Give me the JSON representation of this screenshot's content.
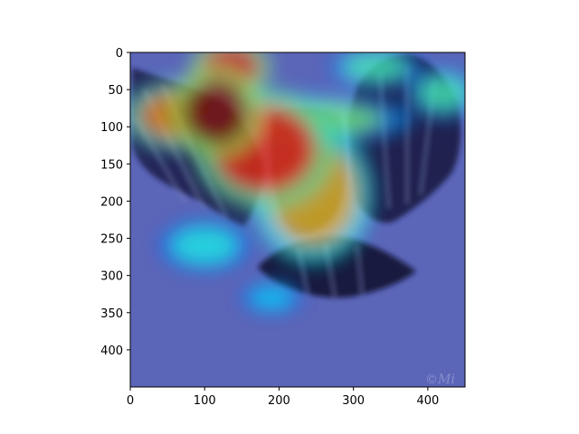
{
  "chart_data": {
    "type": "heatmap",
    "title": "",
    "xlabel": "",
    "ylabel": "",
    "xlim": [
      0,
      450
    ],
    "ylim": [
      450,
      0
    ],
    "x_ticks": [
      0,
      100,
      200,
      300,
      400
    ],
    "y_ticks": [
      0,
      50,
      100,
      150,
      200,
      250,
      300,
      350,
      400
    ],
    "colormap": "jet",
    "grid": false,
    "background_color": "#5b66b8",
    "image_subject": "bird with spread wings overlaid by an attention heatmap",
    "watermark": "©Mi",
    "hotspots": [
      {
        "x": 115,
        "y": 80,
        "rx": 45,
        "ry": 45,
        "intensity": 1.0
      },
      {
        "x": 135,
        "y": 20,
        "rx": 40,
        "ry": 30,
        "intensity": 0.9
      },
      {
        "x": 180,
        "y": 130,
        "rx": 70,
        "ry": 60,
        "intensity": 0.85
      },
      {
        "x": 65,
        "y": 85,
        "rx": 55,
        "ry": 35,
        "intensity": 0.75
      },
      {
        "x": 245,
        "y": 190,
        "rx": 60,
        "ry": 70,
        "intensity": 0.7
      },
      {
        "x": 230,
        "y": 90,
        "rx": 110,
        "ry": 25,
        "intensity": 0.5
      },
      {
        "x": 330,
        "y": 20,
        "rx": 45,
        "ry": 20,
        "intensity": 0.45
      },
      {
        "x": 420,
        "y": 55,
        "rx": 35,
        "ry": 25,
        "intensity": 0.45
      },
      {
        "x": 100,
        "y": 260,
        "rx": 45,
        "ry": 25,
        "intensity": 0.4
      },
      {
        "x": 190,
        "y": 330,
        "rx": 30,
        "ry": 15,
        "intensity": 0.35
      }
    ]
  }
}
